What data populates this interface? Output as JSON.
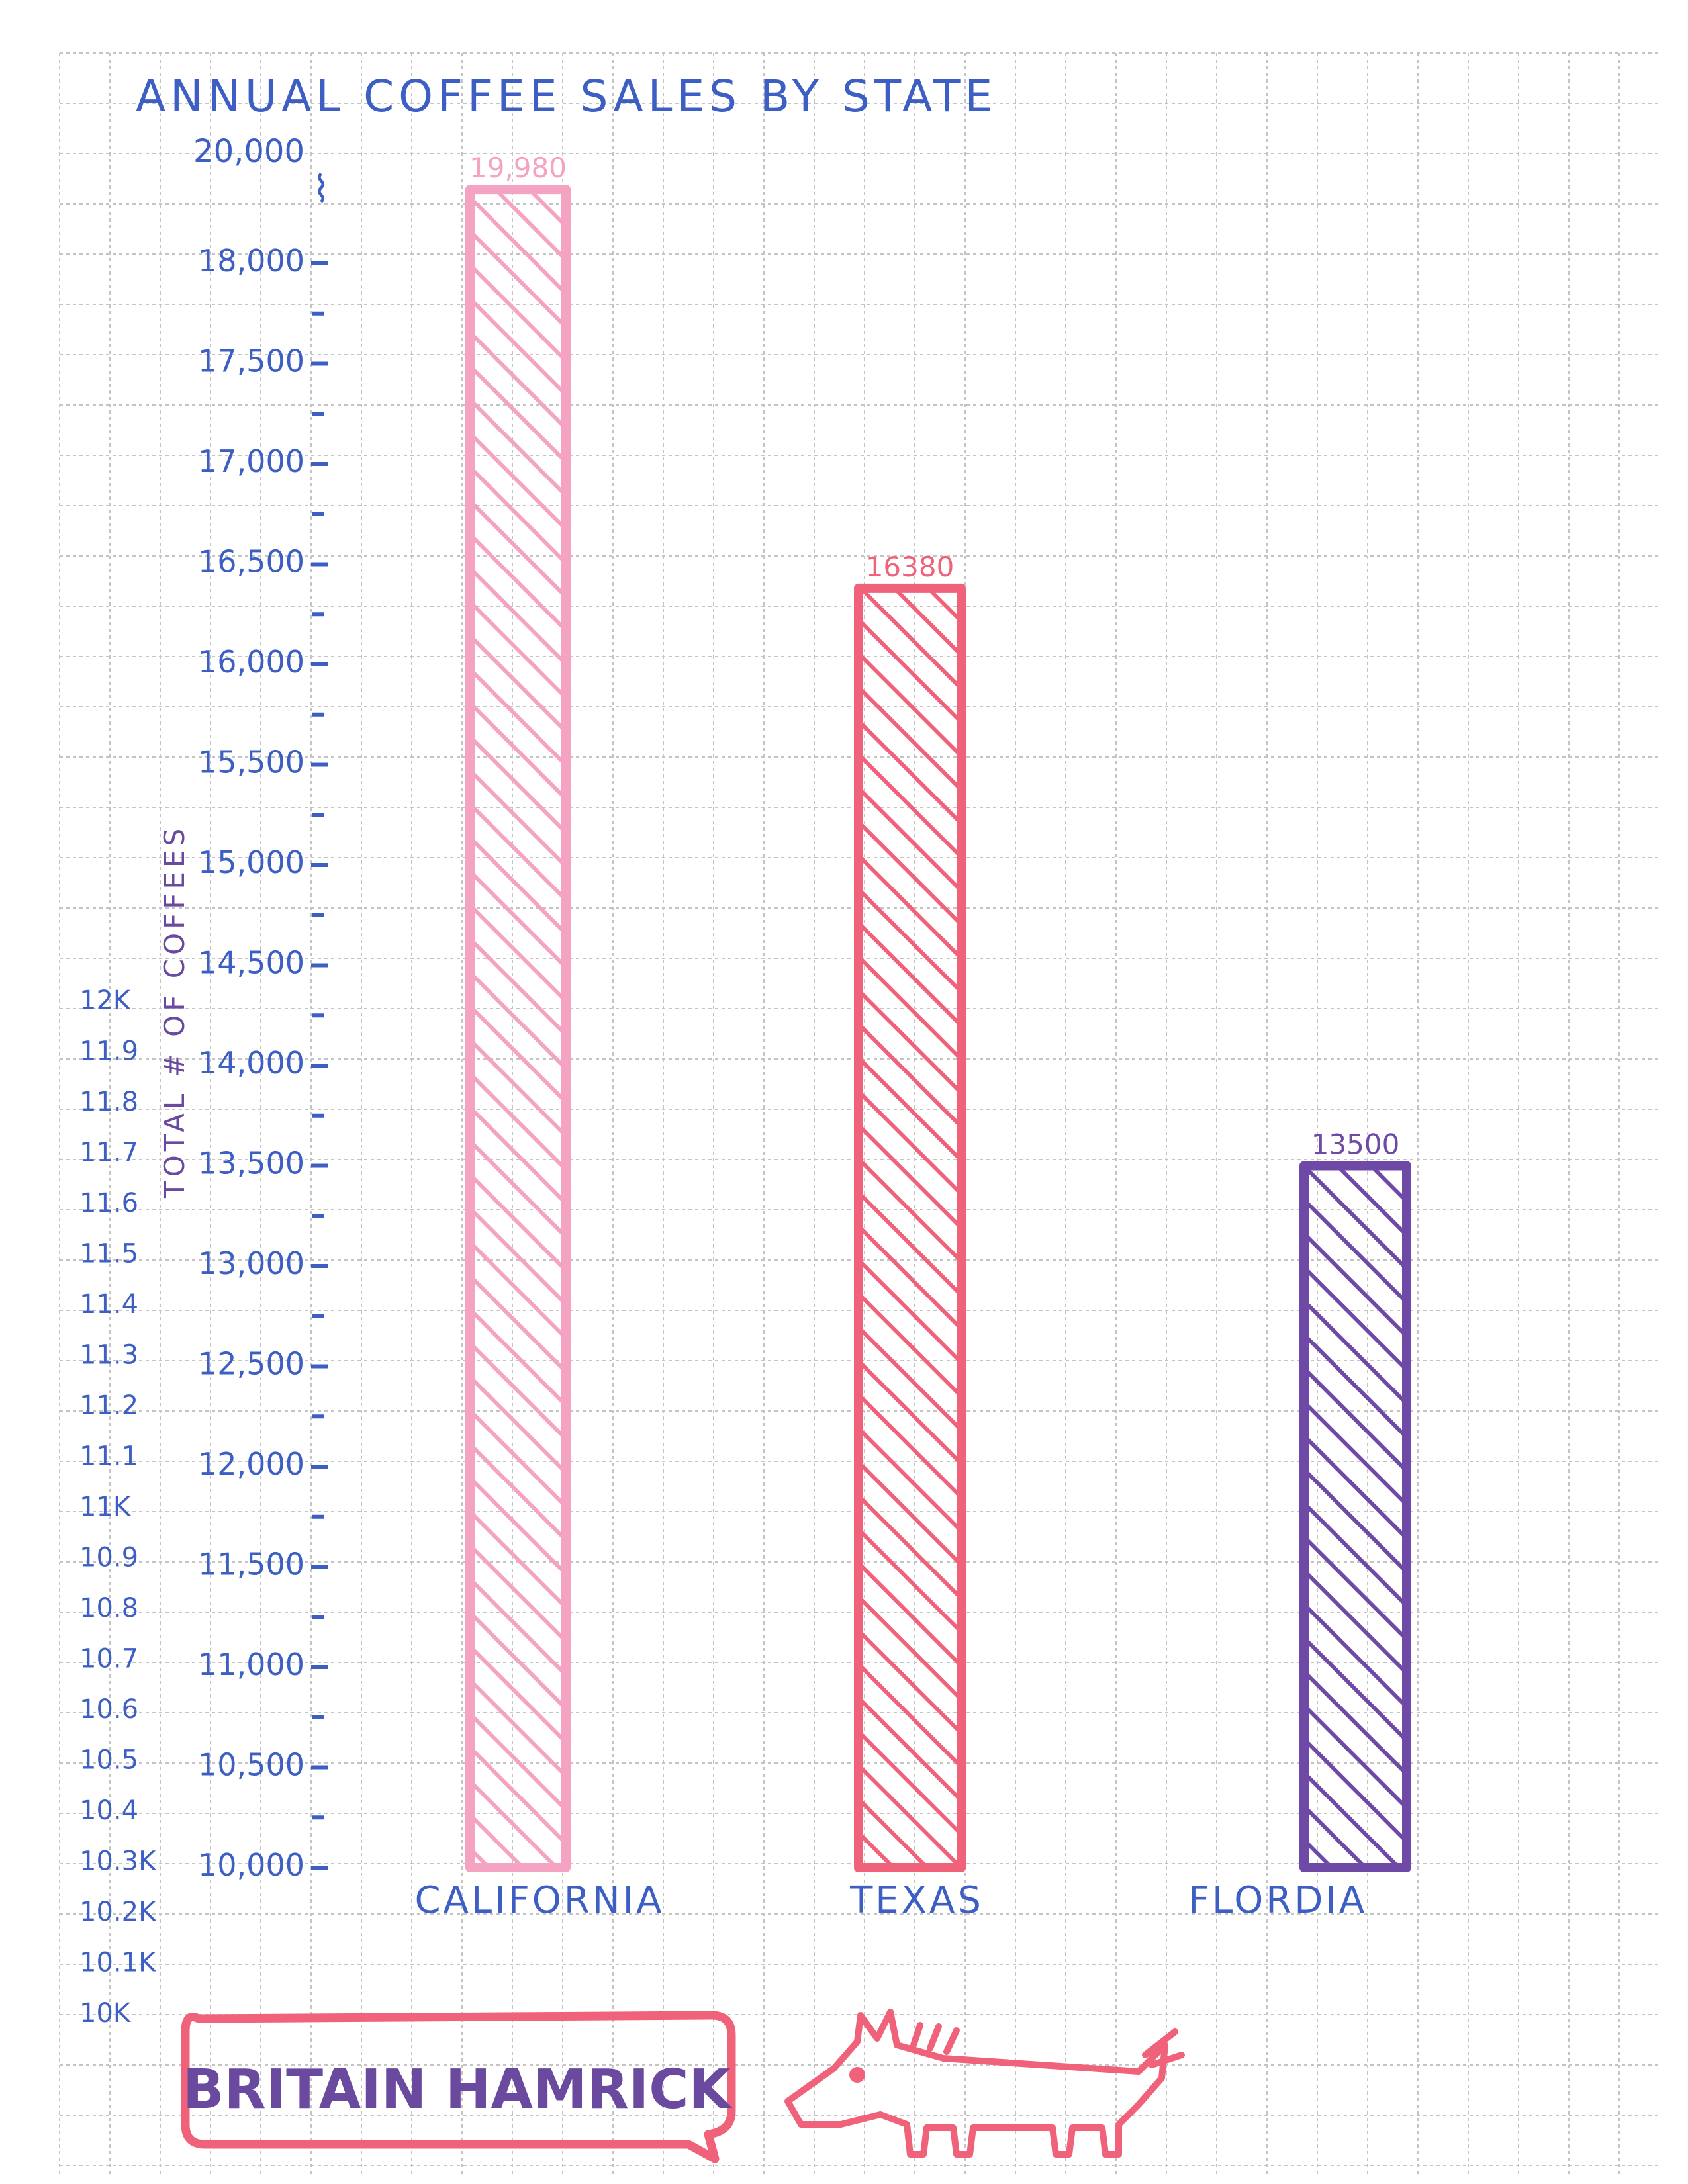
{
  "chart_data": {
    "type": "bar",
    "title": "ANNUAL COFFEE SALES BY STATE",
    "ylabel": "TOTAL # OF COFFEES",
    "xlabel": "",
    "categories": [
      "CALIFORNIA",
      "TEXAS",
      "FLORDIA"
    ],
    "values": [
      19980,
      16380,
      13500
    ],
    "value_labels": [
      "19,980",
      "16380",
      "13500"
    ],
    "ylim": [
      10000,
      20000
    ],
    "y_ticks": [
      {
        "value": 10000,
        "label": "10,000"
      },
      {
        "value": 10500,
        "label": "10,500"
      },
      {
        "value": 11000,
        "label": "11,000"
      },
      {
        "value": 11500,
        "label": "11,500"
      },
      {
        "value": 12000,
        "label": "12,000"
      },
      {
        "value": 12500,
        "label": "12,500"
      },
      {
        "value": 13000,
        "label": "13,000"
      },
      {
        "value": 13500,
        "label": "13,500"
      },
      {
        "value": 14000,
        "label": "14,000"
      },
      {
        "value": 14500,
        "label": "14,500"
      },
      {
        "value": 15000,
        "label": "15,000"
      },
      {
        "value": 15500,
        "label": "15,500"
      },
      {
        "value": 16000,
        "label": "16,000"
      },
      {
        "value": 16500,
        "label": "16,500"
      },
      {
        "value": 17000,
        "label": "17,000"
      },
      {
        "value": 17500,
        "label": "17,500"
      },
      {
        "value": 18000,
        "label": "18,000"
      }
    ],
    "top_label": "20,000",
    "discarded_scale_labels": [
      "12K",
      "11.9",
      "11.8",
      "11.7",
      "11.6",
      "11.5",
      "11.4",
      "11.3",
      "11.2",
      "11.1",
      "11K",
      "10.9",
      "10.8",
      "10.7",
      "10.6",
      "10.5",
      "10.4",
      "10.3K",
      "10.2K",
      "10.1K",
      "10K"
    ],
    "bar_colors": [
      "#f5a3c2",
      "#f0627a",
      "#6e4aa6"
    ],
    "grid": true,
    "legend": "none"
  },
  "signature": "BRITAIN HAMRICK",
  "colors": {
    "ink_blue": "#3d5fc4",
    "ink_purple": "#6a4a9e",
    "ink_red": "#f0627a",
    "grid": "#c4c4c4"
  }
}
